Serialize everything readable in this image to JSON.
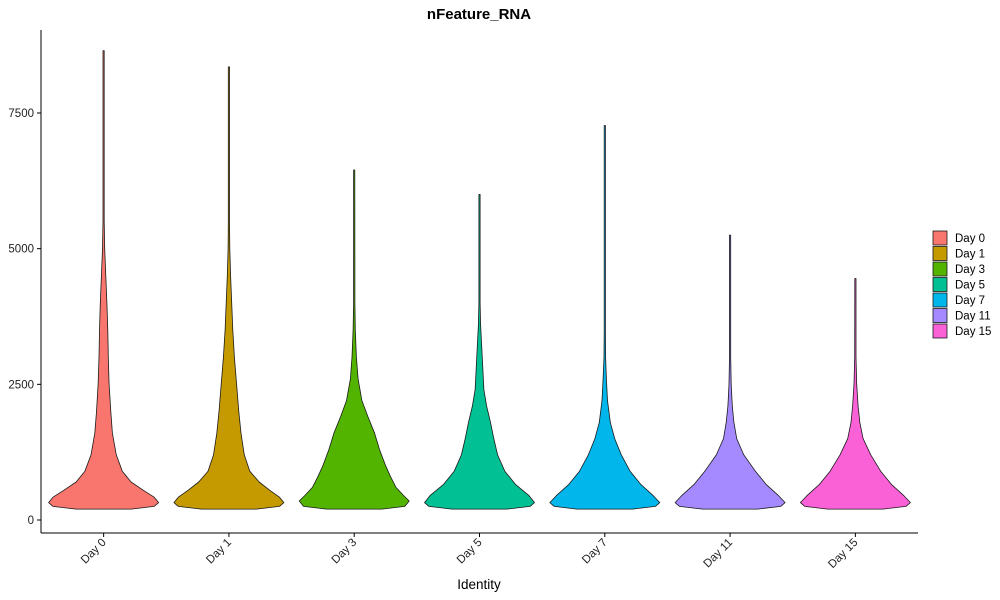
{
  "chart_data": {
    "type": "violin",
    "title": "nFeature_RNA",
    "xlabel": "Identity",
    "ylabel": "",
    "ylim": [
      -250,
      9000
    ],
    "yticks": [
      0,
      2500,
      5000,
      7500
    ],
    "grid": false,
    "legend_position": "right",
    "categories": [
      "Day 0",
      "Day 1",
      "Day 3",
      "Day 5",
      "Day 7",
      "Day 11",
      "Day 15"
    ],
    "colors": [
      "#F8766D",
      "#C49A00",
      "#53B400",
      "#00C094",
      "#00B6EB",
      "#A58AFF",
      "#FB61D7"
    ],
    "series": [
      {
        "name": "Day 0",
        "min": 200,
        "max": 8650,
        "profile": [
          [
            200,
            0.5
          ],
          [
            250,
            0.92
          ],
          [
            320,
            1.0
          ],
          [
            420,
            0.92
          ],
          [
            550,
            0.72
          ],
          [
            700,
            0.5
          ],
          [
            900,
            0.34
          ],
          [
            1200,
            0.23
          ],
          [
            1600,
            0.16
          ],
          [
            2000,
            0.13
          ],
          [
            2500,
            0.1
          ],
          [
            3000,
            0.085
          ],
          [
            3500,
            0.075
          ],
          [
            4000,
            0.06
          ],
          [
            4500,
            0.04
          ],
          [
            5000,
            0.02
          ],
          [
            5500,
            0.01
          ],
          [
            8650,
            0.005
          ]
        ]
      },
      {
        "name": "Day 1",
        "min": 200,
        "max": 8350,
        "profile": [
          [
            200,
            0.5
          ],
          [
            250,
            0.92
          ],
          [
            320,
            1.0
          ],
          [
            420,
            0.92
          ],
          [
            550,
            0.74
          ],
          [
            700,
            0.55
          ],
          [
            900,
            0.38
          ],
          [
            1200,
            0.28
          ],
          [
            1600,
            0.22
          ],
          [
            2000,
            0.18
          ],
          [
            2500,
            0.14
          ],
          [
            3000,
            0.1
          ],
          [
            3500,
            0.07
          ],
          [
            4000,
            0.05
          ],
          [
            4500,
            0.03
          ],
          [
            5000,
            0.015
          ],
          [
            5500,
            0.008
          ],
          [
            8350,
            0.005
          ]
        ]
      },
      {
        "name": "Day 3",
        "min": 200,
        "max": 6450,
        "profile": [
          [
            200,
            0.5
          ],
          [
            250,
            0.92
          ],
          [
            350,
            1.0
          ],
          [
            450,
            0.9
          ],
          [
            600,
            0.76
          ],
          [
            800,
            0.66
          ],
          [
            1000,
            0.57
          ],
          [
            1300,
            0.46
          ],
          [
            1600,
            0.37
          ],
          [
            1900,
            0.25
          ],
          [
            2200,
            0.14
          ],
          [
            2600,
            0.07
          ],
          [
            3000,
            0.04
          ],
          [
            3500,
            0.02
          ],
          [
            4000,
            0.012
          ],
          [
            6450,
            0.005
          ]
        ]
      },
      {
        "name": "Day 5",
        "min": 200,
        "max": 6000,
        "profile": [
          [
            200,
            0.5
          ],
          [
            250,
            0.92
          ],
          [
            320,
            1.0
          ],
          [
            450,
            0.9
          ],
          [
            650,
            0.66
          ],
          [
            900,
            0.46
          ],
          [
            1200,
            0.33
          ],
          [
            1500,
            0.26
          ],
          [
            1800,
            0.2
          ],
          [
            2100,
            0.13
          ],
          [
            2400,
            0.08
          ],
          [
            2800,
            0.06
          ],
          [
            3200,
            0.04
          ],
          [
            3600,
            0.02
          ],
          [
            4000,
            0.01
          ],
          [
            6000,
            0.005
          ]
        ]
      },
      {
        "name": "Day 7",
        "min": 200,
        "max": 7270,
        "profile": [
          [
            200,
            0.5
          ],
          [
            250,
            0.92
          ],
          [
            320,
            1.0
          ],
          [
            450,
            0.88
          ],
          [
            650,
            0.66
          ],
          [
            900,
            0.46
          ],
          [
            1200,
            0.3
          ],
          [
            1500,
            0.18
          ],
          [
            1800,
            0.1
          ],
          [
            2200,
            0.05
          ],
          [
            2600,
            0.03
          ],
          [
            3000,
            0.015
          ],
          [
            3500,
            0.008
          ],
          [
            7270,
            0.004
          ]
        ]
      },
      {
        "name": "Day 11",
        "min": 200,
        "max": 5250,
        "profile": [
          [
            200,
            0.5
          ],
          [
            250,
            0.92
          ],
          [
            320,
            1.0
          ],
          [
            450,
            0.88
          ],
          [
            650,
            0.66
          ],
          [
            900,
            0.46
          ],
          [
            1200,
            0.25
          ],
          [
            1500,
            0.12
          ],
          [
            1800,
            0.07
          ],
          [
            2100,
            0.04
          ],
          [
            2500,
            0.02
          ],
          [
            3000,
            0.01
          ],
          [
            5250,
            0.004
          ]
        ]
      },
      {
        "name": "Day 15",
        "min": 200,
        "max": 4450,
        "profile": [
          [
            200,
            0.5
          ],
          [
            250,
            0.92
          ],
          [
            320,
            1.0
          ],
          [
            450,
            0.88
          ],
          [
            650,
            0.66
          ],
          [
            900,
            0.46
          ],
          [
            1200,
            0.28
          ],
          [
            1500,
            0.14
          ],
          [
            1800,
            0.08
          ],
          [
            2100,
            0.05
          ],
          [
            2500,
            0.025
          ],
          [
            3000,
            0.012
          ],
          [
            4450,
            0.004
          ]
        ]
      }
    ]
  }
}
